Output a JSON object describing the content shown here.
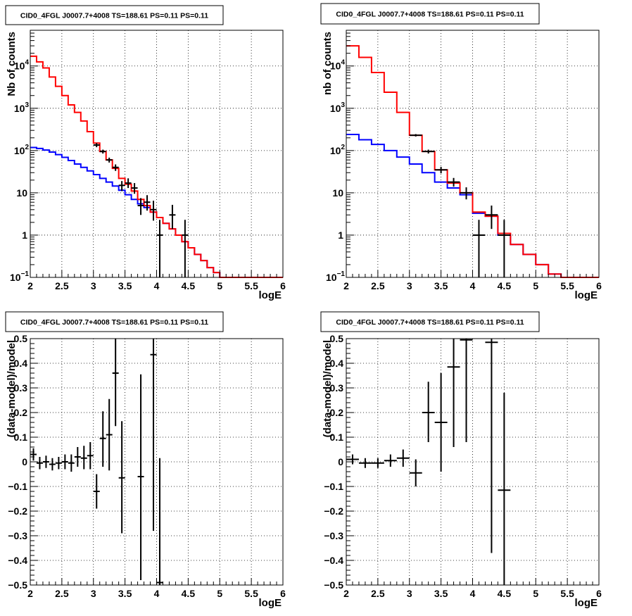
{
  "colors": {
    "data": "#000000",
    "total_model": "#ff0000",
    "background_model": "#0000ff",
    "grid": "#000000"
  },
  "chart_data": [
    {
      "type": "histogram",
      "title": "CID0_4FGL J0007.7+4008 TS=188.61 PS=0.11 PS=0.11",
      "xlabel": "logE",
      "ylabel": "Nb of counts",
      "xlim": [
        2,
        6
      ],
      "ylim": [
        0.1,
        70000
      ],
      "yscale": "log",
      "grid": true,
      "xticks": [
        "2",
        "2.5",
        "3",
        "3.5",
        "4",
        "4.5",
        "5",
        "5.5",
        "6"
      ],
      "yticks": [
        {
          "v": 0.1,
          "label": "10",
          "exp": "−1"
        },
        {
          "v": 1,
          "label": "1",
          "exp": ""
        },
        {
          "v": 10,
          "label": "10",
          "exp": ""
        },
        {
          "v": 100,
          "label": "10",
          "exp": "2"
        },
        {
          "v": 1000,
          "label": "10",
          "exp": "3"
        },
        {
          "v": 10000,
          "label": "10",
          "exp": "4"
        }
      ],
      "bin_edges": [
        2.0,
        2.1,
        2.2,
        2.3,
        2.4,
        2.5,
        2.6,
        2.7,
        2.8,
        2.9,
        3.0,
        3.1,
        3.2,
        3.3,
        3.4,
        3.5,
        3.6,
        3.7,
        3.8,
        3.9,
        4.0,
        4.1,
        4.2,
        4.3,
        4.4,
        4.5,
        4.6,
        4.7,
        4.8,
        4.9,
        5.0,
        5.1,
        5.2,
        5.3,
        5.4,
        5.5,
        5.6,
        5.7,
        5.8,
        5.9,
        6.0
      ],
      "series": [
        {
          "name": "",
          "role": "total_model",
          "values": [
            17000,
            12500,
            9000,
            5500,
            3300,
            2000,
            1200,
            800,
            500,
            280,
            150,
            95,
            60,
            38,
            22,
            16,
            11,
            7,
            5,
            3.5,
            2.6,
            1.9,
            1.4,
            1.0,
            0.7,
            0.5,
            0.35,
            0.25,
            0.17,
            0.13,
            0.1,
            0.1,
            0.1,
            0.1,
            0.1,
            0.1,
            0.1,
            0.1,
            0.1,
            0.1
          ]
        },
        {
          "name": "",
          "role": "background_model",
          "values": [
            118,
            112,
            103,
            92,
            80,
            69,
            58,
            48,
            40,
            33,
            27,
            22,
            18,
            14.5,
            11.5,
            9,
            7,
            5.5,
            4.5,
            3.5,
            2.6,
            1.9,
            1.4,
            1.0,
            0.7,
            0.5,
            0.35,
            0.25,
            0.17,
            0.13,
            0.1,
            0.1,
            0.1,
            0.1,
            0.1,
            0.1,
            0.1,
            0.1,
            0.1,
            0.1
          ]
        }
      ],
      "points": [
        {
          "x": 3.05,
          "y": 135,
          "lo": 120,
          "hi": 150,
          "xw": 0.05
        },
        {
          "x": 3.15,
          "y": 95,
          "lo": 85,
          "hi": 105,
          "xw": 0.05
        },
        {
          "x": 3.25,
          "y": 60,
          "lo": 52,
          "hi": 68,
          "xw": 0.05
        },
        {
          "x": 3.35,
          "y": 40,
          "lo": 33,
          "hi": 47,
          "xw": 0.05
        },
        {
          "x": 3.45,
          "y": 15,
          "lo": 11,
          "hi": 19,
          "xw": 0.05
        },
        {
          "x": 3.55,
          "y": 17,
          "lo": 13,
          "hi": 22,
          "xw": 0.05
        },
        {
          "x": 3.65,
          "y": 13,
          "lo": 9.5,
          "hi": 17,
          "xw": 0.05
        },
        {
          "x": 3.75,
          "y": 5,
          "lo": 3,
          "hi": 7.5,
          "xw": 0.05
        },
        {
          "x": 3.85,
          "y": 6,
          "lo": 3.8,
          "hi": 8.8,
          "xw": 0.05
        },
        {
          "x": 3.95,
          "y": 4,
          "lo": 2.2,
          "hi": 6.5,
          "xw": 0.05
        },
        {
          "x": 4.05,
          "y": 1,
          "lo": 0.1,
          "hi": 2.3,
          "xw": 0.05
        },
        {
          "x": 4.25,
          "y": 3,
          "lo": 1.4,
          "hi": 5.2,
          "xw": 0.05
        },
        {
          "x": 4.45,
          "y": 1,
          "lo": 0.1,
          "hi": 2.3,
          "xw": 0.05
        }
      ]
    },
    {
      "type": "histogram",
      "title": "CID0_4FGL J0007.7+4008 TS=188.61 PS=0.11 PS=0.11",
      "xlabel": "logE",
      "ylabel": "nb of counts",
      "xlim": [
        2,
        6
      ],
      "ylim": [
        0.1,
        70000
      ],
      "yscale": "log",
      "grid": true,
      "xticks": [
        "2",
        "2.5",
        "3",
        "3.5",
        "4",
        "4.5",
        "5",
        "5.5",
        "6"
      ],
      "yticks": [
        {
          "v": 0.1,
          "label": "10",
          "exp": "−1"
        },
        {
          "v": 1,
          "label": "1",
          "exp": ""
        },
        {
          "v": 10,
          "label": "10",
          "exp": ""
        },
        {
          "v": 100,
          "label": "10",
          "exp": "2"
        },
        {
          "v": 1000,
          "label": "10",
          "exp": "3"
        },
        {
          "v": 10000,
          "label": "10",
          "exp": "4"
        }
      ],
      "bin_edges": [
        2.0,
        2.2,
        2.4,
        2.6,
        2.8,
        3.0,
        3.2,
        3.4,
        3.6,
        3.8,
        4.0,
        4.2,
        4.4,
        4.6,
        4.8,
        5.0,
        5.2,
        5.4,
        5.6,
        5.8,
        6.0
      ],
      "series": [
        {
          "name": "",
          "role": "total_model",
          "values": [
            30000,
            16000,
            7000,
            2400,
            800,
            230,
            95,
            35,
            17,
            10,
            3.5,
            2.8,
            1.1,
            0.6,
            0.35,
            0.2,
            0.12,
            0.1,
            0.1,
            0.1
          ]
        },
        {
          "name": "",
          "role": "background_model",
          "values": [
            240,
            180,
            140,
            100,
            70,
            48,
            30,
            18,
            13,
            9,
            3.3,
            2.8,
            1.0,
            0.6,
            0.35,
            0.2,
            0.12,
            0.1,
            0.1,
            0.1
          ]
        }
      ],
      "points": [
        {
          "x": 3.1,
          "y": 230,
          "lo": 215,
          "hi": 245,
          "xw": 0.1
        },
        {
          "x": 3.3,
          "y": 95,
          "lo": 85,
          "hi": 105,
          "xw": 0.1
        },
        {
          "x": 3.5,
          "y": 35,
          "lo": 29,
          "hi": 41,
          "xw": 0.1
        },
        {
          "x": 3.7,
          "y": 18,
          "lo": 14,
          "hi": 22.5,
          "xw": 0.1
        },
        {
          "x": 3.9,
          "y": 10,
          "lo": 7,
          "hi": 13.5,
          "xw": 0.1
        },
        {
          "x": 4.1,
          "y": 1,
          "lo": 0.1,
          "hi": 2.3,
          "xw": 0.1
        },
        {
          "x": 4.3,
          "y": 3,
          "lo": 1.4,
          "hi": 5,
          "xw": 0.1
        },
        {
          "x": 4.5,
          "y": 1,
          "lo": 0.1,
          "hi": 2.3,
          "xw": 0.1
        }
      ]
    },
    {
      "type": "scatter",
      "title": "CID0_4FGL J0007.7+4008 TS=188.61 PS=0.11 PS=0.11",
      "xlabel": "logE",
      "ylabel": "(data-model)/model",
      "xlim": [
        2,
        6
      ],
      "ylim": [
        -0.5,
        0.5
      ],
      "yscale": "linear",
      "grid": true,
      "xticks": [
        "2",
        "2.5",
        "3",
        "3.5",
        "4",
        "4.5",
        "5",
        "5.5",
        "6"
      ],
      "yticks": [
        {
          "v": -0.5,
          "label": "−0.5"
        },
        {
          "v": -0.4,
          "label": "−0.4"
        },
        {
          "v": -0.3,
          "label": "−0.3"
        },
        {
          "v": -0.2,
          "label": "−0.2"
        },
        {
          "v": -0.1,
          "label": "−0.1"
        },
        {
          "v": 0,
          "label": "0"
        },
        {
          "v": 0.1,
          "label": "0.1"
        },
        {
          "v": 0.2,
          "label": "0.2"
        },
        {
          "v": 0.3,
          "label": "0.3"
        },
        {
          "v": 0.4,
          "label": "0.4"
        },
        {
          "v": 0.5,
          "label": "0.5"
        }
      ],
      "points": [
        {
          "x": 2.05,
          "y": 0.03,
          "lo": 0.005,
          "hi": 0.055,
          "xw": 0.05
        },
        {
          "x": 2.15,
          "y": -0.005,
          "lo": -0.03,
          "hi": 0.02,
          "xw": 0.05
        },
        {
          "x": 2.25,
          "y": 0.0,
          "lo": -0.025,
          "hi": 0.025,
          "xw": 0.05
        },
        {
          "x": 2.35,
          "y": -0.01,
          "lo": -0.035,
          "hi": 0.015,
          "xw": 0.05
        },
        {
          "x": 2.45,
          "y": -0.005,
          "lo": -0.03,
          "hi": 0.02,
          "xw": 0.05
        },
        {
          "x": 2.55,
          "y": 0.0,
          "lo": -0.03,
          "hi": 0.03,
          "xw": 0.05
        },
        {
          "x": 2.65,
          "y": -0.005,
          "lo": -0.04,
          "hi": 0.03,
          "xw": 0.05
        },
        {
          "x": 2.75,
          "y": 0.02,
          "lo": -0.02,
          "hi": 0.06,
          "xw": 0.05
        },
        {
          "x": 2.85,
          "y": 0.015,
          "lo": -0.03,
          "hi": 0.065,
          "xw": 0.05
        },
        {
          "x": 2.95,
          "y": 0.025,
          "lo": -0.03,
          "hi": 0.08,
          "xw": 0.05
        },
        {
          "x": 3.05,
          "y": -0.12,
          "lo": -0.19,
          "hi": -0.05,
          "xw": 0.05
        },
        {
          "x": 3.15,
          "y": 0.095,
          "lo": -0.02,
          "hi": 0.205,
          "xw": 0.05
        },
        {
          "x": 3.25,
          "y": 0.11,
          "lo": -0.035,
          "hi": 0.255,
          "xw": 0.05
        },
        {
          "x": 3.35,
          "y": 0.36,
          "lo": 0.145,
          "hi": 0.5,
          "xw": 0.05
        },
        {
          "x": 3.45,
          "y": -0.065,
          "lo": -0.29,
          "hi": 0.165,
          "xw": 0.05
        },
        {
          "x": 3.75,
          "y": -0.06,
          "lo": -0.48,
          "hi": 0.355,
          "xw": 0.05
        },
        {
          "x": 3.95,
          "y": 0.435,
          "lo": -0.28,
          "hi": 0.5,
          "xw": 0.05
        },
        {
          "x": 4.05,
          "y": -0.49,
          "lo": -0.5,
          "hi": 0.015,
          "xw": 0.05
        }
      ]
    },
    {
      "type": "scatter",
      "title": "CID0_4FGL J0007.7+4008 TS=188.61 PS=0.11 PS=0.11",
      "xlabel": "logE",
      "ylabel": "(data-model)/model",
      "xlim": [
        2,
        6
      ],
      "ylim": [
        -0.5,
        0.5
      ],
      "yscale": "linear",
      "grid": true,
      "xticks": [
        "2",
        "2.5",
        "3",
        "3.5",
        "4",
        "4.5",
        "5",
        "5.5",
        "6"
      ],
      "yticks": [
        {
          "v": -0.5,
          "label": "−0.5"
        },
        {
          "v": -0.4,
          "label": "−0.4"
        },
        {
          "v": -0.3,
          "label": "−0.3"
        },
        {
          "v": -0.2,
          "label": "−0.2"
        },
        {
          "v": -0.1,
          "label": "−0.1"
        },
        {
          "v": 0,
          "label": "0"
        },
        {
          "v": 0.1,
          "label": "0.1"
        },
        {
          "v": 0.2,
          "label": "0.2"
        },
        {
          "v": 0.3,
          "label": "0.3"
        },
        {
          "v": 0.4,
          "label": "0.4"
        },
        {
          "v": 0.5,
          "label": "0.5"
        }
      ],
      "points": [
        {
          "x": 2.1,
          "y": 0.01,
          "lo": -0.01,
          "hi": 0.03,
          "xw": 0.1
        },
        {
          "x": 2.3,
          "y": -0.005,
          "lo": -0.025,
          "hi": 0.015,
          "xw": 0.1
        },
        {
          "x": 2.5,
          "y": -0.005,
          "lo": -0.025,
          "hi": 0.015,
          "xw": 0.1
        },
        {
          "x": 2.7,
          "y": 0.005,
          "lo": -0.02,
          "hi": 0.03,
          "xw": 0.1
        },
        {
          "x": 2.9,
          "y": 0.015,
          "lo": -0.02,
          "hi": 0.05,
          "xw": 0.1
        },
        {
          "x": 3.1,
          "y": -0.045,
          "lo": -0.1,
          "hi": 0.01,
          "xw": 0.1
        },
        {
          "x": 3.3,
          "y": 0.2,
          "lo": 0.08,
          "hi": 0.325,
          "xw": 0.1
        },
        {
          "x": 3.5,
          "y": 0.16,
          "lo": -0.04,
          "hi": 0.36,
          "xw": 0.1
        },
        {
          "x": 3.7,
          "y": 0.385,
          "lo": 0.06,
          "hi": 0.5,
          "xw": 0.1
        },
        {
          "x": 3.9,
          "y": 0.495,
          "lo": 0.08,
          "hi": 0.5,
          "xw": 0.1
        },
        {
          "x": 4.3,
          "y": 0.485,
          "lo": -0.37,
          "hi": 0.5,
          "xw": 0.1
        },
        {
          "x": 4.5,
          "y": -0.115,
          "lo": -0.5,
          "hi": 0.28,
          "xw": 0.1
        }
      ]
    }
  ]
}
